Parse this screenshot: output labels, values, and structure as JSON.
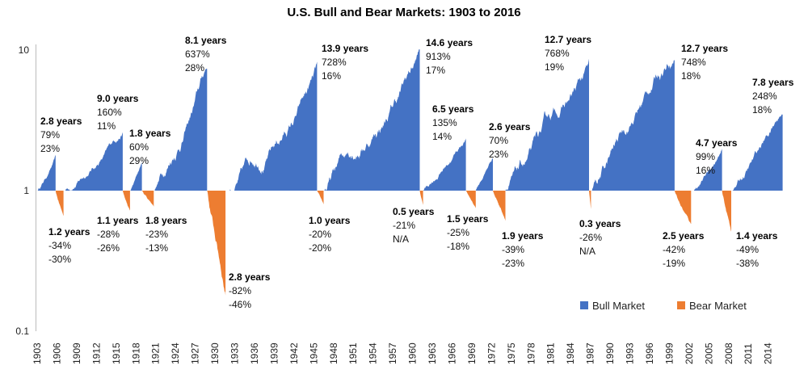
{
  "chart_data": {
    "type": "area",
    "title": "U.S.  Bull and Bear Markets: 1903 to 2016",
    "xlabel": "",
    "ylabel": "",
    "y_scale": "log",
    "ylim": [
      0.1,
      10
    ],
    "y_ticks": [
      "10",
      "1",
      "0.1"
    ],
    "xlim": [
      1903,
      2016.5
    ],
    "x_ticks": [
      "1903",
      "1906",
      "1909",
      "1912",
      "1915",
      "1918",
      "1921",
      "1924",
      "1927",
      "1930",
      "1933",
      "1936",
      "1939",
      "1942",
      "1945",
      "1948",
      "1951",
      "1954",
      "1957",
      "1960",
      "1963",
      "1966",
      "1969",
      "1972",
      "1975",
      "1978",
      "1981",
      "1984",
      "1987",
      "1990",
      "1993",
      "1996",
      "1999",
      "2002",
      "2005",
      "2008",
      "2011",
      "2014"
    ],
    "grid": false,
    "legend": {
      "placement": "bottom-right",
      "entries": [
        "Bull Market",
        "Bear Market"
      ]
    },
    "colors": {
      "bull": "#4472C4",
      "bear": "#ED7D31"
    },
    "markets": [
      {
        "type": "bull",
        "duration": 2.8,
        "change": 79,
        "annual": 23,
        "labels": [
          "2.8 years",
          "79%",
          "23%"
        ]
      },
      {
        "type": "bear",
        "duration": 1.2,
        "change": -34,
        "annual": -30,
        "labels": [
          "1.2 years",
          "-34%",
          "-30%"
        ]
      },
      {
        "type": "bull",
        "duration": 9.0,
        "change": 160,
        "annual": 11,
        "labels": [
          "9.0 years",
          "160%",
          "11%"
        ]
      },
      {
        "type": "bear",
        "duration": 1.1,
        "change": -28,
        "annual": -26,
        "labels": [
          "1.1 years",
          "-28%",
          "-26%"
        ]
      },
      {
        "type": "bull",
        "duration": 1.8,
        "change": 60,
        "annual": 29,
        "labels": [
          "1.8 years",
          "60%",
          "29%"
        ]
      },
      {
        "type": "bear",
        "duration": 1.8,
        "change": -23,
        "annual": -13,
        "labels": [
          "1.8 years",
          "-23%",
          "-13%"
        ]
      },
      {
        "type": "bull",
        "duration": 8.1,
        "change": 637,
        "annual": 28,
        "labels": [
          "8.1 years",
          "637%",
          "28%"
        ]
      },
      {
        "type": "bear",
        "duration": 2.8,
        "change": -82,
        "annual": -46,
        "labels": [
          "2.8 years",
          "-82%",
          "-46%"
        ]
      },
      {
        "type": "bull",
        "duration": 13.9,
        "change": 728,
        "annual": 16,
        "labels": [
          "13.9 years",
          "728%",
          "16%"
        ]
      },
      {
        "type": "bear",
        "duration": 1.0,
        "change": -20,
        "annual": -20,
        "labels": [
          "1.0 years",
          "-20%",
          "-20%"
        ]
      },
      {
        "type": "bull",
        "duration": 14.6,
        "change": 913,
        "annual": 17,
        "labels": [
          "14.6 years",
          "913%",
          "17%"
        ]
      },
      {
        "type": "bear",
        "duration": 0.5,
        "change": -21,
        "annual": null,
        "labels": [
          "0.5 years",
          "-21%",
          "N/A"
        ]
      },
      {
        "type": "bull",
        "duration": 6.5,
        "change": 135,
        "annual": 14,
        "labels": [
          "6.5 years",
          "135%",
          "14%"
        ]
      },
      {
        "type": "bear",
        "duration": 1.5,
        "change": -25,
        "annual": -18,
        "labels": [
          "1.5 years",
          "-25%",
          "-18%"
        ]
      },
      {
        "type": "bull",
        "duration": 2.6,
        "change": 70,
        "annual": 23,
        "labels": [
          "2.6 years",
          "70%",
          "23%"
        ]
      },
      {
        "type": "bear",
        "duration": 1.9,
        "change": -39,
        "annual": -23,
        "labels": [
          "1.9 years",
          "-39%",
          "-23%"
        ]
      },
      {
        "type": "bull",
        "duration": 12.7,
        "change": 768,
        "annual": 19,
        "labels": [
          "12.7 years",
          "768%",
          "19%"
        ]
      },
      {
        "type": "bear",
        "duration": 0.3,
        "change": -26,
        "annual": null,
        "labels": [
          "0.3 years",
          "-26%",
          "N/A"
        ]
      },
      {
        "type": "bull",
        "duration": 12.7,
        "change": 748,
        "annual": 18,
        "labels": [
          "12.7 years",
          "748%",
          "18%"
        ]
      },
      {
        "type": "bear",
        "duration": 2.5,
        "change": -42,
        "annual": -19,
        "labels": [
          "2.5 years",
          "-42%",
          "-19%"
        ]
      },
      {
        "type": "bull",
        "duration": 4.7,
        "change": 99,
        "annual": 16,
        "labels": [
          "4.7 years",
          "99%",
          "16%"
        ]
      },
      {
        "type": "bear",
        "duration": 1.4,
        "change": -49,
        "annual": -38,
        "labels": [
          "1.4 years",
          "-49%",
          "-38%"
        ]
      },
      {
        "type": "bull",
        "duration": 7.8,
        "change": 248,
        "annual": 18,
        "labels": [
          "7.8 years",
          "248%",
          "18%"
        ]
      }
    ]
  }
}
